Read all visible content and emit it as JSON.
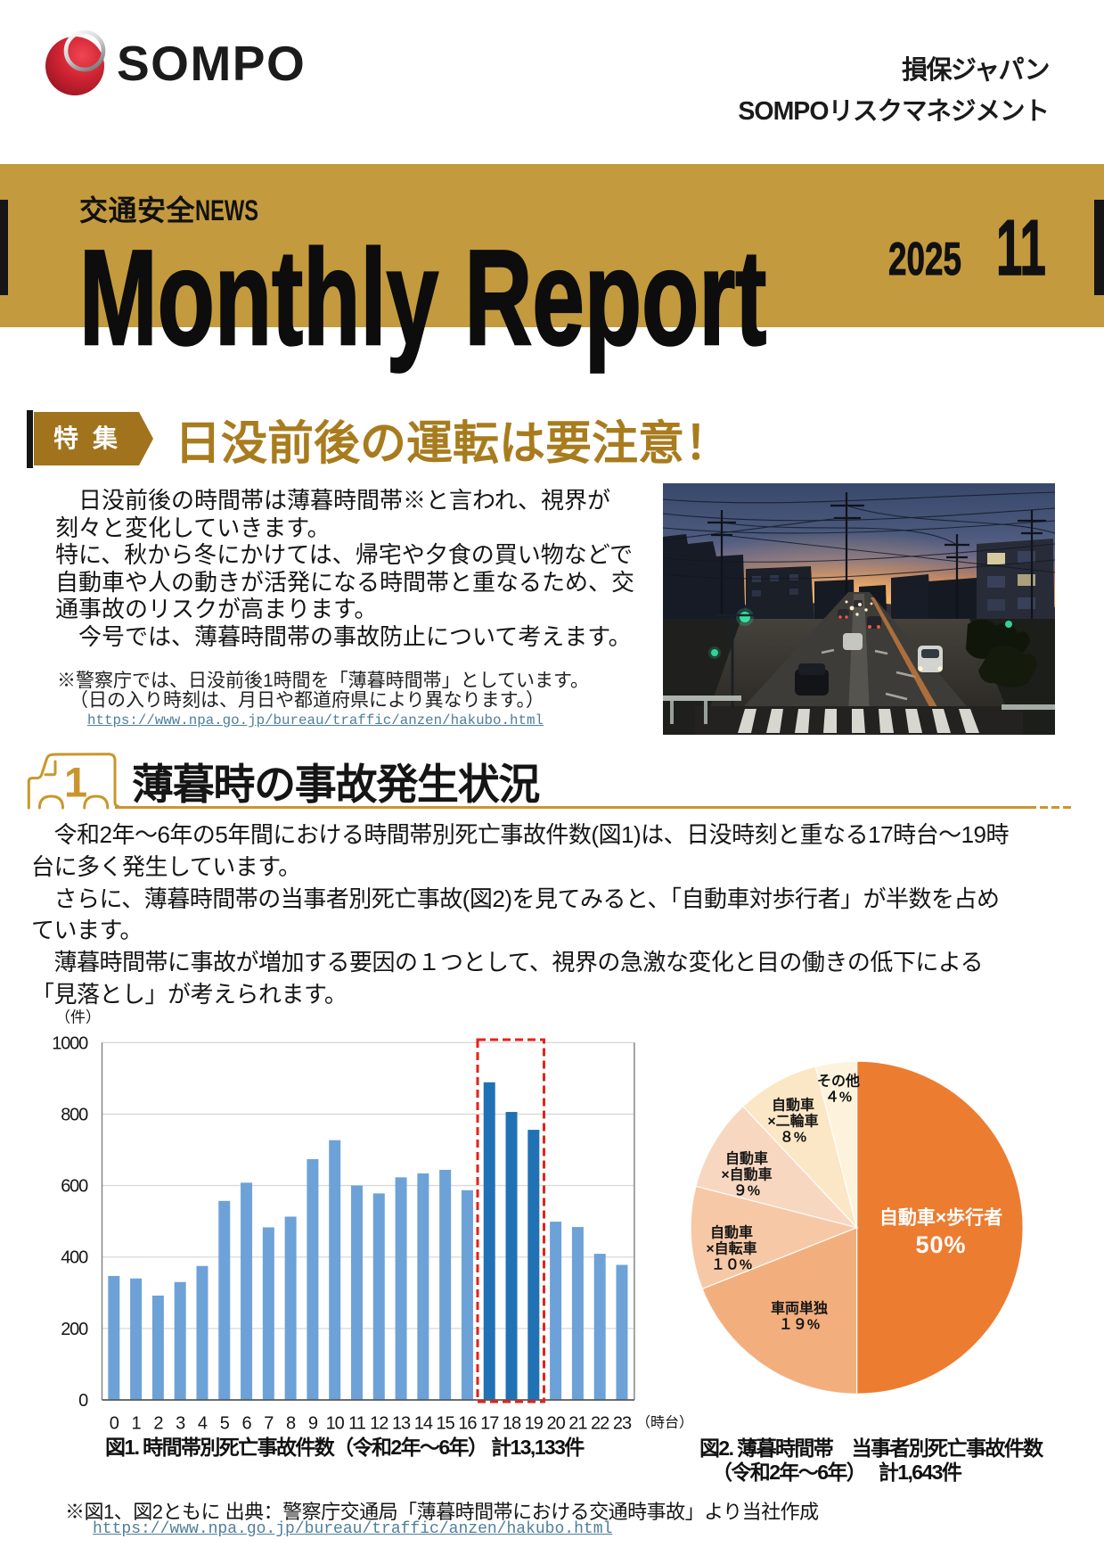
{
  "header": {
    "logo_text": "SOMPO",
    "company_line1": "損保ジャパン",
    "company_line2": "SOMPOリスクマネジメント"
  },
  "banner": {
    "kicker_jp": "交通安全",
    "kicker_latin": "NEWS",
    "title": "Monthly Report",
    "year": "2025",
    "month": "11"
  },
  "feature": {
    "badge": "特集",
    "title": "日没前後の運転は要注意！",
    "paragraph": "　日没前後の時間帯は薄暮時間帯※と言われ、視界が\n刻々と変化していきます。\n特に、秋から冬にかけては、帰宅や夕食の買い物などで\n自動車や人の動きが活発になる時間帯と重なるため、交\n通事故のリスクが高まります。\n　今号では、薄暮時間帯の事故防止について考えます。",
    "note_line1": "※警察庁では、日没前後1時間を「薄暮時間帯」としています。",
    "note_line2": "（日の入り時刻は、月日や都道府県により異なります。）",
    "note_url": "https://www.npa.go.jp/bureau/traffic/anzen/hakubo.html"
  },
  "section1": {
    "number": "1",
    "title": "薄暮時の事故発生状況",
    "paragraph": "　令和2年～6年の5年間における時間帯別死亡事故件数(図1)は、日没時刻と重なる17時台～19時\n台に多く発生しています。\n　さらに、薄暮時間帯の当事者別死亡事故(図2)を見てみると、「自動車対歩行者」が半数を占め\nています。\n　薄暮時間帯に事故が増加する要因の１つとして、視界の急激な変化と目の働きの低下による\n「見落とし」が考えられます。"
  },
  "figure1": {
    "caption": "図1. 時間帯別死亡事故件数（令和2年～6年） 計13,133件"
  },
  "figure2": {
    "caption_line1": "図2. 薄暮時間帯　当事者別死亡事故件数",
    "caption_line2": "（令和2年～6年）　 計1,643件"
  },
  "footer": {
    "source_line": "※図1、図2ともに 出典：警察庁交通局「薄暮時間帯における交通時事故」より当社作成",
    "source_url": "https://www.npa.go.jp/bureau/traffic/anzen/hakubo.html"
  },
  "chart_data": [
    {
      "type": "bar",
      "title": "図1. 時間帯別死亡事故件数（令和2年～6年） 計13,133件",
      "xlabel": "（時台）",
      "ylabel": "（件）",
      "categories": [
        "0",
        "1",
        "2",
        "3",
        "4",
        "5",
        "6",
        "7",
        "8",
        "9",
        "10",
        "11",
        "12",
        "13",
        "14",
        "15",
        "16",
        "17",
        "18",
        "19",
        "20",
        "21",
        "22",
        "23"
      ],
      "values": [
        347,
        340,
        292,
        330,
        375,
        557,
        608,
        483,
        513,
        674,
        727,
        600,
        578,
        623,
        634,
        644,
        587,
        889,
        806,
        756,
        499,
        484,
        409,
        378
      ],
      "total": "計13,133件",
      "ylim": [
        0,
        1000
      ],
      "ytick_interval": 200,
      "grid": true,
      "highlight_categories": [
        "17",
        "18",
        "19"
      ],
      "bar_color": "#6DA2D8",
      "highlight_color": "#2171B5",
      "highlight_box_color": "#E2231A",
      "legend": "none"
    },
    {
      "type": "pie",
      "title": "図2. 薄暮時間帯 当事者別死亡事故件数（令和2年～6年） 計1,643件",
      "total": "計1,643件",
      "start_angle_deg": 0,
      "direction": "clockwise",
      "slices": [
        {
          "label": "自動車×歩行者",
          "pct_label": "50%",
          "value": 50,
          "color": "#EC7C30",
          "text_color": "#ffffff"
        },
        {
          "label": "車両単独",
          "pct_label": "１９%",
          "value": 19,
          "color": "#F2AE7D",
          "text_color": "#151515"
        },
        {
          "label": "自動車\n×自転車",
          "pct_label": "１０%",
          "value": 10,
          "color": "#F6C8A6",
          "text_color": "#151515"
        },
        {
          "label": "自動車\n×自動車",
          "pct_label": "９%",
          "value": 9,
          "color": "#F8D7C0",
          "text_color": "#151515"
        },
        {
          "label": "自動車\n×二輪車",
          "pct_label": "８%",
          "value": 8,
          "color": "#FBE7C5",
          "text_color": "#151515"
        },
        {
          "label": "その他",
          "pct_label": "４%",
          "value": 4,
          "color": "#FDF3DC",
          "text_color": "#151515"
        }
      ]
    }
  ],
  "colors": {
    "banner_gold": "#C49A3E",
    "badge_brown": "#A0731C",
    "title_gold": "#A87C1E",
    "rule_gold": "#C9962E",
    "link_teal": "#4E7F9B",
    "logo_red": "#C81E2E"
  }
}
